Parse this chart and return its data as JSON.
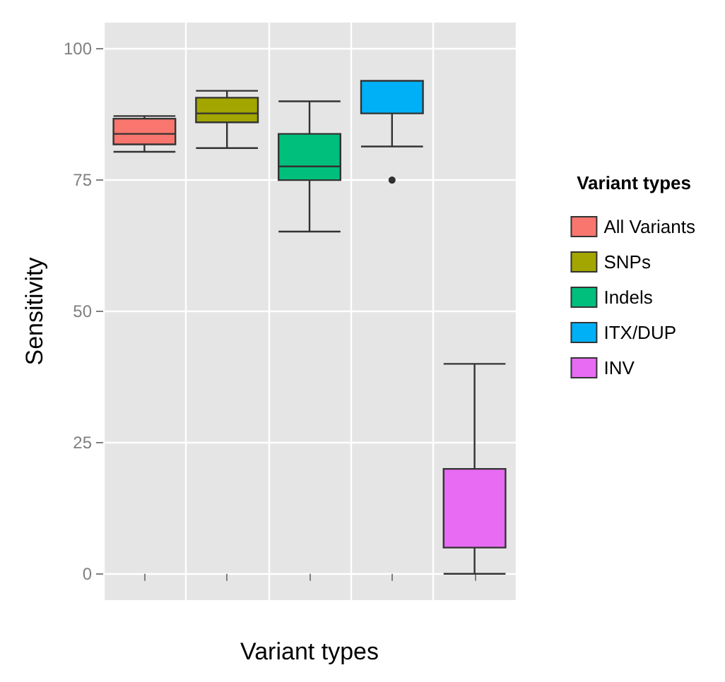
{
  "chart_data": {
    "type": "box",
    "xlabel": "Variant types",
    "ylabel": "Sensitivity",
    "legend_title": "Variant types",
    "legend": "right",
    "grid": true,
    "categories": [
      null,
      null,
      null,
      null,
      null
    ],
    "ylim": [
      -5,
      105
    ],
    "yticks": [
      0,
      25,
      50,
      75,
      100
    ],
    "series": [
      {
        "name": "All Variants",
        "color": "#f8766d",
        "boxes": [
          {
            "low": 80.4,
            "q1": 81.8,
            "median": 83.8,
            "q3": 86.7,
            "high": 87.2
          },
          null,
          null,
          null,
          null
        ]
      },
      {
        "name": "SNPs",
        "color": "#a3a500",
        "boxes": [
          null,
          {
            "low": 81.1,
            "q1": 86,
            "median": 87.7,
            "q3": 90.7,
            "high": 92
          },
          null,
          null,
          null
        ]
      },
      {
        "name": "Indels",
        "color": "#00bf7d",
        "boxes": [
          null,
          null,
          {
            "low": 65.2,
            "q1": 75,
            "median": 77.6,
            "q3": 83.8,
            "high": 90
          },
          null,
          null
        ]
      },
      {
        "name": "ITX/DUP",
        "color": "#00b0f6",
        "boxes": [
          null,
          null,
          null,
          {
            "low": 81.4,
            "q1": 87.7,
            "median": 93.9,
            "q3": 93.9,
            "high": 93.9,
            "outliers": [
              75
            ]
          },
          null
        ]
      },
      {
        "name": "INV",
        "color": "#e76bf3",
        "boxes": [
          null,
          null,
          null,
          null,
          {
            "low": 0,
            "q1": 5,
            "median": 20,
            "q3": 20,
            "high": 40
          }
        ]
      }
    ]
  }
}
